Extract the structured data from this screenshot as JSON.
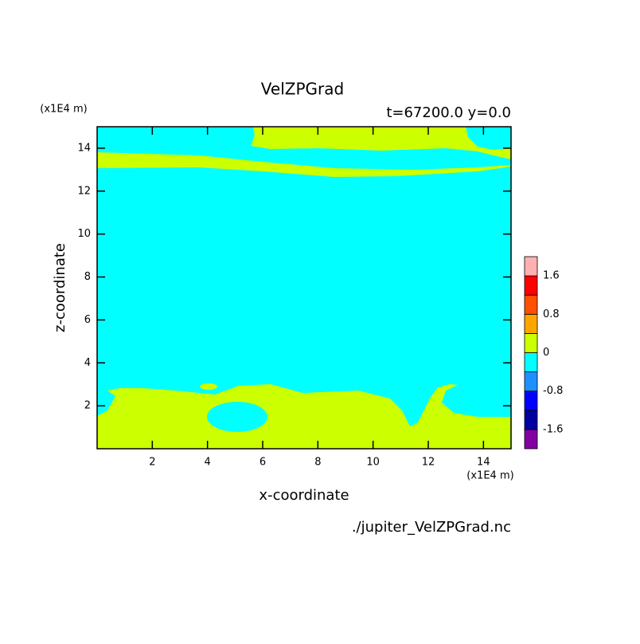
{
  "chart_data": {
    "type": "contour",
    "title": "VelZPGrad",
    "subtitle": "t=67200.0 y=0.0",
    "x_label": "x-coordinate",
    "y_label": "z-coordinate",
    "x_unit": "(x1E4 m)",
    "y_unit": "(x1E4 m)",
    "source": "./jupiter_VelZPGrad.nc",
    "xlim": [
      0,
      15
    ],
    "xticks": [
      2,
      4,
      6,
      8,
      10,
      12,
      14
    ],
    "ylim": [
      0,
      15
    ],
    "yticks": [
      2,
      4,
      6,
      8,
      10,
      12,
      14
    ],
    "levels": [
      -2.0,
      -1.6,
      -1.2,
      -0.8,
      -0.4,
      0,
      0.4,
      0.8,
      1.2,
      1.6,
      2.0
    ],
    "colors": [
      "#8000a0",
      "#0000a0",
      "#0000ff",
      "#1e90ff",
      "#00ffff",
      "#ccff00",
      "#ffa500",
      "#ff5000",
      "#ff0000",
      "#ffb0b0"
    ],
    "colorbar_ticks": [
      -1.6,
      -0.8,
      0,
      0.8,
      1.6
    ]
  }
}
